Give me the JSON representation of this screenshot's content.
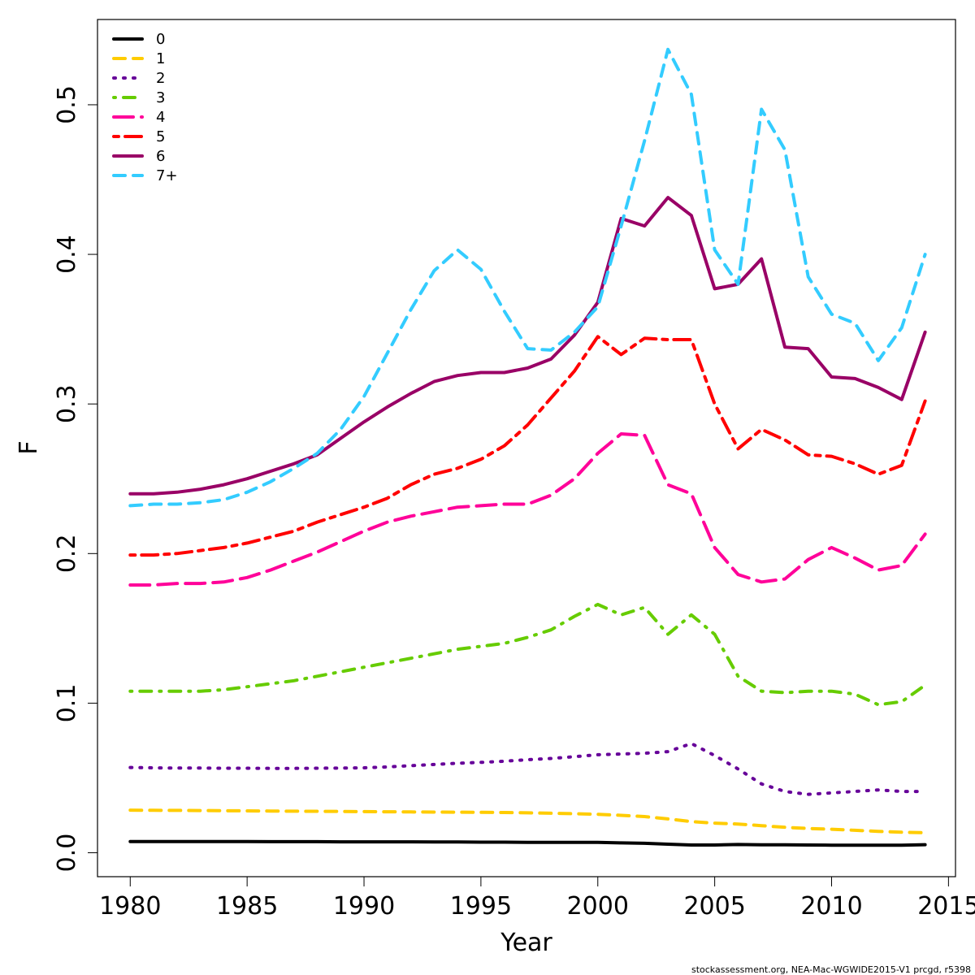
{
  "chart_data": {
    "type": "line",
    "title": "",
    "xlabel": "Year",
    "ylabel": "F",
    "xlim": [
      1978.6,
      2015.3
    ],
    "ylim": [
      -0.016,
      0.557
    ],
    "x_ticks": [
      1980,
      1985,
      1990,
      1995,
      2000,
      2005,
      2010,
      2015
    ],
    "x_tick_labels": [
      "1980",
      "1985",
      "1990",
      "1995",
      "2000",
      "2005",
      "2010",
      "2015"
    ],
    "y_ticks": [
      0.0,
      0.1,
      0.2,
      0.3,
      0.4,
      0.5
    ],
    "y_tick_labels": [
      "0.0",
      "0.1",
      "0.2",
      "0.3",
      "0.4",
      "0.5"
    ],
    "grid": false,
    "legend_position": "top-left",
    "x": [
      1980,
      1981,
      1982,
      1983,
      1984,
      1985,
      1986,
      1987,
      1988,
      1989,
      1990,
      1991,
      1992,
      1993,
      1994,
      1995,
      1996,
      1997,
      1998,
      1999,
      2000,
      2001,
      2002,
      2003,
      2004,
      2005,
      2006,
      2007,
      2008,
      2009,
      2010,
      2011,
      2012,
      2013,
      2014
    ],
    "series": [
      {
        "name": "0",
        "color": "#000000",
        "dash": "solid",
        "values": [
          0.0075,
          0.0075,
          0.0075,
          0.0075,
          0.0075,
          0.0075,
          0.0074,
          0.0074,
          0.0074,
          0.0073,
          0.0073,
          0.0073,
          0.0073,
          0.0072,
          0.0072,
          0.0071,
          0.0071,
          0.007,
          0.007,
          0.0069,
          0.0069,
          0.0066,
          0.0063,
          0.0057,
          0.0052,
          0.0052,
          0.0055,
          0.0053,
          0.0053,
          0.0052,
          0.0051,
          0.0051,
          0.0051,
          0.0051,
          0.0054
        ]
      },
      {
        "name": "1",
        "color": "#FFCC00",
        "dash": "dashed",
        "values": [
          0.0285,
          0.0284,
          0.0283,
          0.0282,
          0.0281,
          0.028,
          0.0279,
          0.0278,
          0.0277,
          0.0276,
          0.0275,
          0.0274,
          0.0273,
          0.0272,
          0.0271,
          0.027,
          0.0269,
          0.0267,
          0.0264,
          0.0261,
          0.0257,
          0.025,
          0.0242,
          0.0226,
          0.0208,
          0.0198,
          0.0192,
          0.0181,
          0.017,
          0.0162,
          0.0157,
          0.015,
          0.0143,
          0.0137,
          0.0134
        ]
      },
      {
        "name": "2",
        "color": "#660099",
        "dash": "dotted",
        "values": [
          0.057,
          0.0568,
          0.0566,
          0.0566,
          0.0565,
          0.0565,
          0.0564,
          0.0564,
          0.0565,
          0.0566,
          0.0568,
          0.0574,
          0.0582,
          0.059,
          0.0598,
          0.0604,
          0.0612,
          0.0622,
          0.063,
          0.0642,
          0.0655,
          0.066,
          0.0665,
          0.0676,
          0.073,
          0.065,
          0.056,
          0.046,
          0.041,
          0.039,
          0.04,
          0.041,
          0.042,
          0.041,
          0.041
        ]
      },
      {
        "name": "3",
        "color": "#66CC00",
        "dash": "dotdash",
        "values": [
          0.108,
          0.108,
          0.108,
          0.108,
          0.109,
          0.111,
          0.113,
          0.115,
          0.118,
          0.121,
          0.124,
          0.127,
          0.13,
          0.133,
          0.136,
          0.138,
          0.14,
          0.144,
          0.149,
          0.158,
          0.166,
          0.159,
          0.164,
          0.146,
          0.159,
          0.146,
          0.118,
          0.108,
          0.107,
          0.108,
          0.108,
          0.106,
          0.099,
          0.101,
          0.112
        ]
      },
      {
        "name": "4",
        "color": "#FF0099",
        "dash": "longdash",
        "values": [
          0.179,
          0.179,
          0.18,
          0.18,
          0.181,
          0.184,
          0.189,
          0.195,
          0.201,
          0.208,
          0.215,
          0.221,
          0.225,
          0.228,
          0.231,
          0.232,
          0.233,
          0.233,
          0.239,
          0.25,
          0.267,
          0.28,
          0.279,
          0.246,
          0.24,
          0.204,
          0.186,
          0.181,
          0.183,
          0.196,
          0.204,
          0.197,
          0.189,
          0.192,
          0.213
        ]
      },
      {
        "name": "5",
        "color": "#FF0000",
        "dash": "twodash",
        "values": [
          0.199,
          0.199,
          0.2,
          0.202,
          0.204,
          0.207,
          0.211,
          0.215,
          0.221,
          0.226,
          0.231,
          0.237,
          0.246,
          0.253,
          0.257,
          0.263,
          0.272,
          0.286,
          0.304,
          0.322,
          0.345,
          0.333,
          0.344,
          0.343,
          0.343,
          0.3,
          0.27,
          0.283,
          0.276,
          0.266,
          0.265,
          0.26,
          0.253,
          0.259,
          0.302
        ]
      },
      {
        "name": "6",
        "color": "#990066",
        "dash": "solid",
        "values": [
          0.24,
          0.24,
          0.241,
          0.243,
          0.246,
          0.25,
          0.255,
          0.26,
          0.266,
          0.277,
          0.288,
          0.298,
          0.307,
          0.315,
          0.319,
          0.321,
          0.321,
          0.324,
          0.33,
          0.346,
          0.368,
          0.424,
          0.419,
          0.438,
          0.426,
          0.377,
          0.38,
          0.397,
          0.338,
          0.337,
          0.318,
          0.317,
          0.311,
          0.303,
          0.348
        ]
      },
      {
        "name": "7+",
        "color": "#33CCFF",
        "dash": "dashed",
        "values": [
          0.232,
          0.233,
          0.233,
          0.234,
          0.236,
          0.241,
          0.248,
          0.257,
          0.267,
          0.283,
          0.305,
          0.334,
          0.363,
          0.389,
          0.403,
          0.39,
          0.362,
          0.337,
          0.336,
          0.348,
          0.365,
          0.419,
          0.476,
          0.537,
          0.507,
          0.403,
          0.38,
          0.497,
          0.47,
          0.385,
          0.36,
          0.354,
          0.329,
          0.351,
          0.4
        ]
      }
    ]
  },
  "footer": "stockassessment.org, NEA-Mac-WGWIDE2015-V1  prcgd, r5398"
}
